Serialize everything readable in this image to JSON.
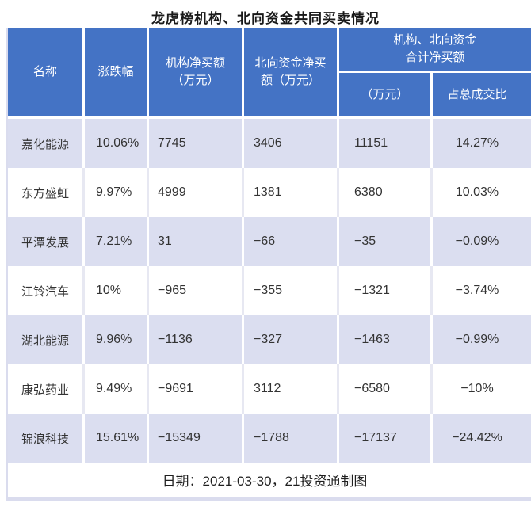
{
  "title": "龙虎榜机构、北向资金共同买卖情况",
  "colors": {
    "header_bg": "#4473C5",
    "band_bg": "#DBDEF0",
    "border": "#DADCEE"
  },
  "table": {
    "headers": {
      "name": "名称",
      "change": "涨跌幅",
      "inst": {
        "line1": "机构净买额",
        "line2": "（万元）"
      },
      "north": {
        "line1": "北向资金净买",
        "line2": "额（万元）"
      },
      "combined": {
        "line1": "机构、北向资金",
        "line2": "合计净买额"
      },
      "combined_amount": "（万元）",
      "combined_ratio": "占总成交比"
    },
    "rows": [
      {
        "name": "嘉化能源",
        "change": "10.06%",
        "inst": "7745",
        "north": "3406",
        "total": "11151",
        "pct": "14.27%"
      },
      {
        "name": "东方盛虹",
        "change": "9.97%",
        "inst": "4999",
        "north": "1381",
        "total": "6380",
        "pct": "10.03%"
      },
      {
        "name": "平潭发展",
        "change": "7.21%",
        "inst": "31",
        "north": "−66",
        "total": "−35",
        "pct": "−0.09%"
      },
      {
        "name": "江铃汽车",
        "change": "10%",
        "inst": "−965",
        "north": "−355",
        "total": "−1321",
        "pct": "−3.74%"
      },
      {
        "name": "湖北能源",
        "change": "9.96%",
        "inst": "−1136",
        "north": "−327",
        "total": "−1463",
        "pct": "−0.99%"
      },
      {
        "name": "康弘药业",
        "change": "9.49%",
        "inst": "−9691",
        "north": "3112",
        "total": "−6580",
        "pct": "−10%"
      },
      {
        "name": "锦浪科技",
        "change": "15.61%",
        "inst": "−15349",
        "north": "−1788",
        "total": "−17137",
        "pct": "−24.42%"
      }
    ],
    "footer": "日期：2021-03-30，21投资通制图"
  },
  "chart_data": {
    "type": "table",
    "title": "龙虎榜机构、北向资金共同买卖情况",
    "columns": [
      "名称",
      "涨跌幅",
      "机构净买额（万元）",
      "北向资金净买额（万元）",
      "机构、北向资金合计净买额（万元）",
      "机构、北向资金合计净买额占总成交比"
    ],
    "rows": [
      [
        "嘉化能源",
        "10.06%",
        7745,
        3406,
        11151,
        "14.27%"
      ],
      [
        "东方盛虹",
        "9.97%",
        4999,
        1381,
        6380,
        "10.03%"
      ],
      [
        "平潭发展",
        "7.21%",
        31,
        -66,
        -35,
        "-0.09%"
      ],
      [
        "江铃汽车",
        "10%",
        -965,
        -355,
        -1321,
        "-3.74%"
      ],
      [
        "湖北能源",
        "9.96%",
        -1136,
        -327,
        -1463,
        "-0.99%"
      ],
      [
        "康弘药业",
        "9.49%",
        -9691,
        3112,
        -6580,
        "-10%"
      ],
      [
        "锦浪科技",
        "15.61%",
        -15349,
        -1788,
        -17137,
        "-24.42%"
      ]
    ],
    "note": "日期：2021-03-30，21投资通制图"
  }
}
